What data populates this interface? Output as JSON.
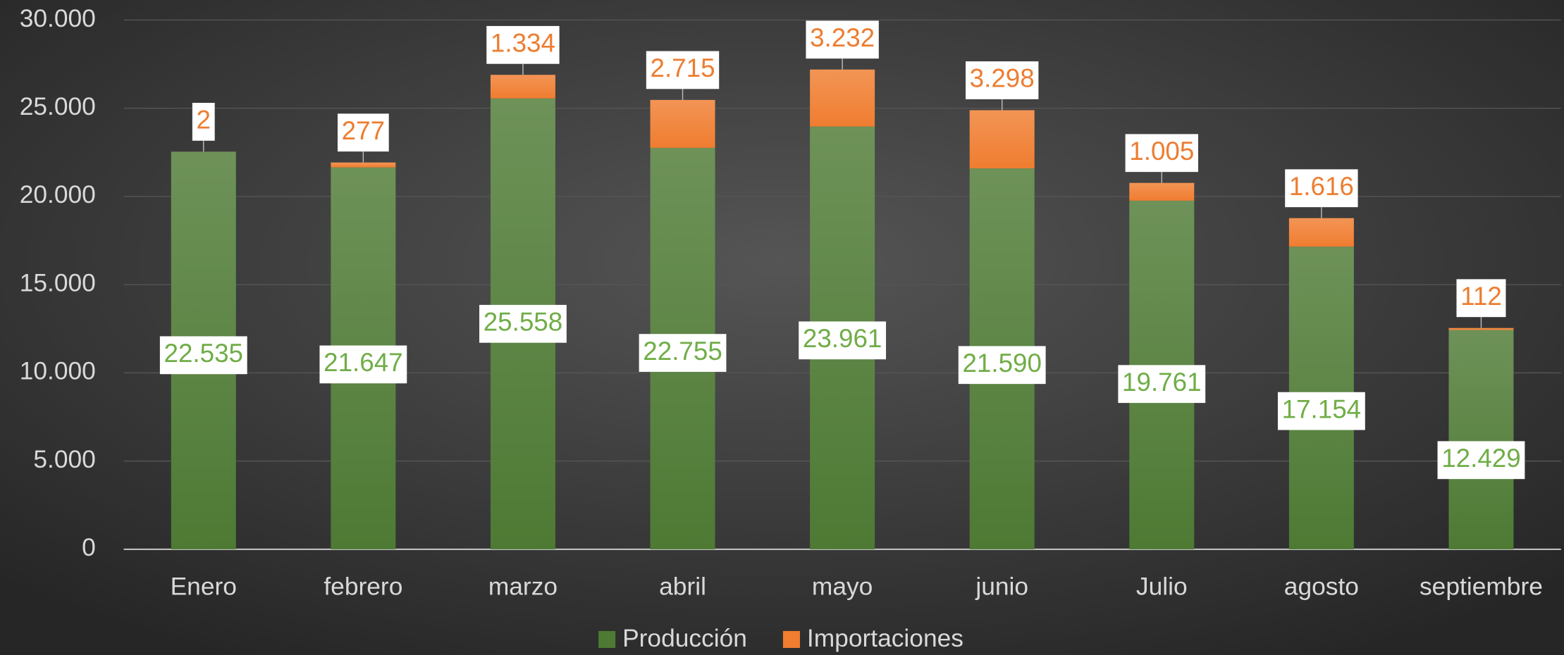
{
  "chart_data": {
    "type": "stacked-bar",
    "categories": [
      "Enero",
      "febrero",
      "marzo",
      "abril",
      "mayo",
      "junio",
      "Julio",
      "agosto",
      "septiembre"
    ],
    "series": [
      {
        "name": "Producción",
        "color": "#4e7a34",
        "values": [
          22535,
          21647,
          25558,
          22755,
          23961,
          21590,
          19761,
          17154,
          12429
        ],
        "value_labels": [
          "22.535",
          "21.647",
          "25.558",
          "22.755",
          "23.961",
          "21.590",
          "19.761",
          "17.154",
          "12.429"
        ]
      },
      {
        "name": "Importaciones",
        "color": "#f07d30",
        "values": [
          2,
          277,
          1334,
          2715,
          3232,
          3298,
          1005,
          1616,
          112
        ],
        "value_labels": [
          "2",
          "277",
          "1.334",
          "2.715",
          "3.232",
          "3.298",
          "1.005",
          "1.616",
          "112"
        ]
      }
    ],
    "ylim": [
      0,
      30000
    ],
    "yticks": [
      0,
      {
        "value": 5000,
        "label": "5.000"
      },
      {
        "value": 10000,
        "label": "10.000"
      },
      {
        "value": 15000,
        "label": "15.000"
      },
      {
        "value": 20000,
        "label": "20.000"
      },
      {
        "value": 25000,
        "label": "25.000"
      },
      {
        "value": 30000,
        "label": "30.000"
      }
    ],
    "grid": true,
    "legend": "bottom"
  }
}
